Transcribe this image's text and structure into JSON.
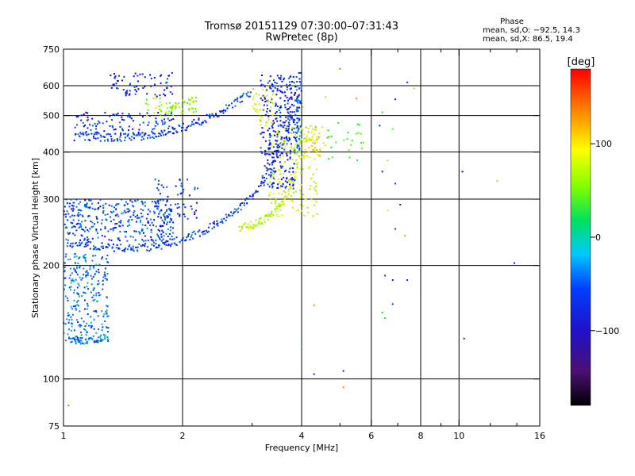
{
  "header": {
    "title_line1": "Tromsø 20151129 07:30:00–07:31:43",
    "title_line2": "RwPretec (8p)"
  },
  "phase_info": {
    "title": "Phase",
    "o_mode": "mean, sd,O: −92.5, 14.3",
    "x_mode": "mean, sd,X: 86.5, 19.4"
  },
  "colorbar": {
    "unit_label": "[deg]",
    "ticks": [
      {
        "value": 100,
        "label": "100"
      },
      {
        "value": 0,
        "label": "0"
      },
      {
        "value": -100,
        "label": "−100"
      }
    ],
    "range": [
      -180,
      180
    ]
  },
  "chart_data": {
    "type": "scatter",
    "xlabel": "Frequency [MHz]",
    "ylabel": "Stationary phase Virtual Height [km]",
    "xscale": "log",
    "yscale": "log",
    "xlim": [
      1,
      16
    ],
    "ylim": [
      75,
      750
    ],
    "x_ticks": [
      {
        "value": 1,
        "label": "1"
      },
      {
        "value": 2,
        "label": "2"
      },
      {
        "value": 4,
        "label": "4"
      },
      {
        "value": 6,
        "label": "6"
      },
      {
        "value": 8,
        "label": "8"
      },
      {
        "value": 10,
        "label": "10"
      },
      {
        "value": 16,
        "label": "16"
      }
    ],
    "x_minor": [
      3,
      5,
      7,
      9,
      12,
      14
    ],
    "x_grid": [
      2,
      4,
      6,
      8,
      10
    ],
    "y_ticks": [
      {
        "value": 75,
        "label": "75"
      },
      {
        "value": 100,
        "label": "100"
      },
      {
        "value": 200,
        "label": "200"
      },
      {
        "value": 300,
        "label": "300"
      },
      {
        "value": 400,
        "label": "400"
      },
      {
        "value": 500,
        "label": "500"
      },
      {
        "value": 600,
        "label": "600"
      },
      {
        "value": 750,
        "label": "750"
      }
    ],
    "y_grid": [
      100,
      200,
      300,
      400,
      500,
      600
    ],
    "grid": true,
    "series": [
      {
        "trace": "O1 lower F trace",
        "type": "curve",
        "phase": -100,
        "jitter": 10,
        "step": 0.006,
        "points": [
          [
            1.02,
            230
          ],
          [
            1.2,
            225
          ],
          [
            1.5,
            222
          ],
          [
            1.8,
            226
          ],
          [
            2.1,
            238
          ],
          [
            2.4,
            255
          ],
          [
            2.7,
            278
          ],
          [
            3.0,
            305
          ],
          [
            3.2,
            335
          ],
          [
            3.4,
            380
          ],
          [
            3.6,
            430
          ],
          [
            3.8,
            500
          ],
          [
            3.95,
            580
          ]
        ]
      },
      {
        "trace": "O1 band below trace",
        "type": "band",
        "phase": -95,
        "x": [
          1.0,
          1.9
        ],
        "y": [
          232,
          300
        ],
        "n": 360
      },
      {
        "trace": "O1 band upper",
        "type": "band",
        "phase": -105,
        "x": [
          1.7,
          2.2
        ],
        "y": [
          265,
          340
        ],
        "n": 60
      },
      {
        "trace": "O1 low-frequency column",
        "type": "band",
        "phase": -85,
        "x": [
          1.0,
          1.3
        ],
        "y": [
          125,
          215
        ],
        "n": 260
      },
      {
        "trace": "O1 low-frequency tail",
        "type": "curve",
        "phase": -80,
        "jitter": 6,
        "step": 0.006,
        "points": [
          [
            1.02,
            128
          ],
          [
            1.1,
            125
          ],
          [
            1.2,
            127
          ],
          [
            1.3,
            128
          ]
        ]
      },
      {
        "trace": "X2 trace",
        "type": "curve",
        "phase": 85,
        "jitter": 10,
        "step": 0.004,
        "points": [
          [
            2.8,
            252
          ],
          [
            3.0,
            256
          ],
          [
            3.3,
            268
          ],
          [
            3.55,
            290
          ],
          [
            3.75,
            320
          ],
          [
            3.9,
            370
          ],
          [
            4.0,
            440
          ],
          [
            4.05,
            520
          ]
        ]
      },
      {
        "trace": "X2 band",
        "type": "band",
        "phase": 95,
        "x": [
          3.3,
          4.4
        ],
        "y": [
          270,
          470
        ],
        "n": 180
      },
      {
        "trace": "O2 multi-hop trace",
        "type": "curve",
        "phase": -100,
        "jitter": 10,
        "step": 0.006,
        "points": [
          [
            1.07,
            440
          ],
          [
            1.3,
            437
          ],
          [
            1.6,
            440
          ],
          [
            1.9,
            455
          ],
          [
            2.2,
            480
          ],
          [
            2.5,
            510
          ],
          [
            2.8,
            550
          ],
          [
            3.0,
            575
          ]
        ]
      },
      {
        "trace": "O2 band",
        "type": "band",
        "phase": -105,
        "x": [
          1.07,
          1.9
        ],
        "y": [
          445,
          510
        ],
        "n": 110
      },
      {
        "trace": "O2 vertical column",
        "type": "band",
        "phase": -110,
        "x": [
          3.15,
          3.85
        ],
        "y": [
          320,
          640
        ],
        "n": 300
      },
      {
        "trace": "O2 column near 4 MHz",
        "type": "band",
        "phase": -95,
        "x": [
          3.85,
          4.0
        ],
        "y": [
          400,
          650
        ],
        "n": 70
      },
      {
        "trace": "X high-altitude patch",
        "type": "band",
        "phase": 70,
        "x": [
          1.6,
          2.2
        ],
        "y": [
          500,
          560
        ],
        "n": 70
      },
      {
        "trace": "O high-altitude patch",
        "type": "band",
        "phase": -110,
        "x": [
          1.3,
          1.9
        ],
        "y": [
          560,
          650
        ],
        "n": 70
      },
      {
        "trace": "X upper cluster",
        "type": "band",
        "phase": 95,
        "x": [
          3.0,
          3.4
        ],
        "y": [
          470,
          600
        ],
        "n": 40
      },
      {
        "trace": "X cluster near 4 MHz",
        "type": "band",
        "phase": 110,
        "x": [
          4.0,
          4.6
        ],
        "y": [
          380,
          470
        ],
        "n": 50
      },
      {
        "trace": "mixed scatter 4.5–6 MHz",
        "type": "band",
        "phase": 40,
        "x": [
          4.6,
          5.8
        ],
        "y": [
          380,
          480
        ],
        "n": 25
      },
      {
        "trace": "scatter above 6 MHz",
        "type": "points",
        "points": [
          [
            6.3,
            470,
            -100
          ],
          [
            6.8,
            460,
            60
          ],
          [
            6.6,
            380,
            120
          ],
          [
            6.4,
            355,
            -110
          ],
          [
            6.9,
            330,
            -100
          ],
          [
            7.1,
            290,
            -110
          ],
          [
            6.6,
            280,
            90
          ],
          [
            6.9,
            250,
            -100
          ],
          [
            7.3,
            240,
            60
          ],
          [
            6.5,
            188,
            -100
          ],
          [
            6.8,
            183,
            -110
          ],
          [
            7.4,
            183,
            -110
          ],
          [
            6.4,
            150,
            30
          ],
          [
            6.8,
            158,
            -100
          ],
          [
            6.5,
            145,
            20
          ],
          [
            10.2,
            355,
            -120
          ],
          [
            10.3,
            128,
            -110
          ],
          [
            13.8,
            203,
            -110
          ],
          [
            12.5,
            335,
            120
          ],
          [
            4.3,
            103,
            -110
          ],
          [
            5.1,
            105,
            -140
          ],
          [
            5.1,
            95,
            140
          ],
          [
            1.03,
            85,
            150
          ],
          [
            4.3,
            157,
            140
          ],
          [
            4.0,
            122,
            20
          ],
          [
            7.7,
            590,
            120
          ],
          [
            7.4,
            612,
            -140
          ],
          [
            5.0,
            665,
            150
          ],
          [
            6.4,
            510,
            20
          ],
          [
            6.9,
            552,
            -110
          ],
          [
            5.5,
            555,
            140
          ],
          [
            4.6,
            560,
            120
          ]
        ]
      }
    ]
  }
}
